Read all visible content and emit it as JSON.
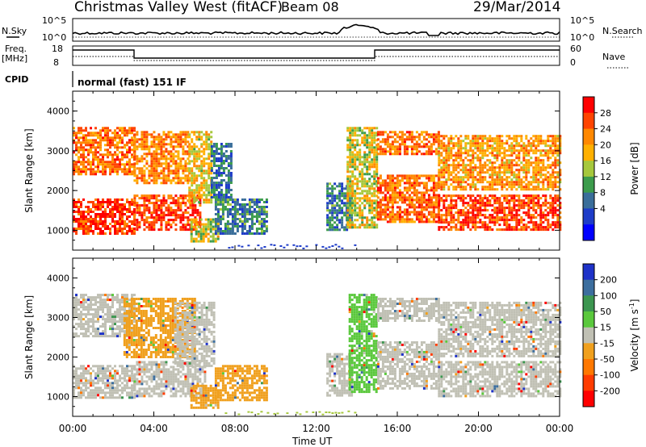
{
  "header": {
    "station": "Christmas Valley West (fitACF)",
    "beam": "Beam 08",
    "date": "29/Mar/2014"
  },
  "top_strip": {
    "nsky_label": "N.Sky",
    "nsky_ticks": [
      "10^5",
      "10^0"
    ],
    "nsearch_label": "N.Search",
    "nsearch_ticks": [
      "10^5",
      "10^0"
    ],
    "freq_label": "Freq.",
    "freq_unit": "[MHz]",
    "freq_ticks": [
      "18",
      "8"
    ],
    "nave_label": "Nave",
    "nave_ticks": [
      "60",
      "0"
    ],
    "cpid_label": "CPID",
    "cpid_value": "normal (fast) 151 IF"
  },
  "chart_data": [
    {
      "type": "heatmap",
      "name": "power",
      "ylabel": "Slant Range [km]",
      "ylim": [
        500,
        4500
      ],
      "yticks": [
        "1000",
        "2000",
        "3000",
        "4000"
      ],
      "xlim": [
        0,
        24
      ],
      "colorbar": {
        "label": "Power [dB]",
        "ticks": [
          "28",
          "24",
          "20",
          "16",
          "12",
          "8",
          "4"
        ],
        "colors": [
          "#ff0000",
          "#ff4400",
          "#ff8800",
          "#ffb000",
          "#a6c83c",
          "#3c9c4c",
          "#3a6e9a",
          "#1e3cc8",
          "#0000ff"
        ]
      },
      "regions": [
        {
          "t0": 0.0,
          "t1": 3.0,
          "r0": 900,
          "r1": 1800,
          "v": 0.92
        },
        {
          "t0": 0.0,
          "t1": 3.0,
          "r0": 2400,
          "r1": 3600,
          "v": 0.8
        },
        {
          "t0": 3.0,
          "t1": 6.3,
          "r0": 1000,
          "r1": 1900,
          "v": 0.88
        },
        {
          "t0": 3.0,
          "t1": 5.7,
          "r0": 2200,
          "r1": 3500,
          "v": 0.75
        },
        {
          "t0": 5.7,
          "t1": 6.8,
          "r0": 1700,
          "r1": 3500,
          "v": 0.6
        },
        {
          "t0": 5.8,
          "t1": 7.2,
          "r0": 700,
          "r1": 1300,
          "v": 0.55
        },
        {
          "t0": 7.0,
          "t1": 9.6,
          "r0": 900,
          "r1": 1800,
          "v": 0.3
        },
        {
          "t0": 6.8,
          "t1": 7.8,
          "r0": 1800,
          "r1": 3200,
          "v": 0.25
        },
        {
          "t0": 12.5,
          "t1": 13.8,
          "r0": 1000,
          "r1": 2200,
          "v": 0.28
        },
        {
          "t0": 13.5,
          "t1": 15.0,
          "r0": 1100,
          "r1": 3600,
          "v": 0.55
        },
        {
          "t0": 15.0,
          "t1": 18.0,
          "r0": 1200,
          "r1": 2400,
          "v": 0.82
        },
        {
          "t0": 15.0,
          "t1": 18.0,
          "r0": 2900,
          "r1": 3500,
          "v": 0.8
        },
        {
          "t0": 18.0,
          "t1": 24.0,
          "r0": 1000,
          "r1": 1900,
          "v": 0.9
        },
        {
          "t0": 18.0,
          "t1": 24.0,
          "r0": 2000,
          "r1": 3400,
          "v": 0.7
        }
      ]
    },
    {
      "type": "heatmap",
      "name": "velocity",
      "ylabel": "Slant Range [km]",
      "ylim": [
        500,
        4500
      ],
      "yticks": [
        "1000",
        "2000",
        "3000",
        "4000"
      ],
      "xlim": [
        0,
        24
      ],
      "xticks": [
        "00:00",
        "04:00",
        "08:00",
        "12:00",
        "16:00",
        "20:00",
        "00:00"
      ],
      "xlabel": "Time UT",
      "colorbar": {
        "label": "Velocity [m s",
        "label_sup": "-1",
        "label_end": "]",
        "ticks": [
          "200",
          "100",
          "50",
          "15",
          "-15",
          "-50",
          "-100",
          "-200"
        ],
        "colors": [
          "#1e32c8",
          "#3c6e9e",
          "#3c9650",
          "#5ac83c",
          "#c0c0b4",
          "#f0a01e",
          "#ff7800",
          "#ff3c00",
          "#ff0000"
        ]
      },
      "regions": [
        {
          "t0": 0.0,
          "t1": 3.0,
          "r0": 1000,
          "r1": 1800,
          "v": "gray"
        },
        {
          "t0": 0.0,
          "t1": 3.0,
          "r0": 2500,
          "r1": 3600,
          "v": "gray"
        },
        {
          "t0": 3.0,
          "t1": 6.5,
          "r0": 1000,
          "r1": 1900,
          "v": "gray"
        },
        {
          "t0": 2.5,
          "t1": 6.0,
          "r0": 2000,
          "r1": 3500,
          "v": "orange"
        },
        {
          "t0": 5.0,
          "t1": 7.0,
          "r0": 1800,
          "r1": 3400,
          "v": "gray"
        },
        {
          "t0": 5.8,
          "t1": 7.2,
          "r0": 700,
          "r1": 1300,
          "v": "orange"
        },
        {
          "t0": 7.0,
          "t1": 9.6,
          "r0": 900,
          "r1": 1800,
          "v": "orange"
        },
        {
          "t0": 12.5,
          "t1": 13.8,
          "r0": 1000,
          "r1": 2100,
          "v": "gray"
        },
        {
          "t0": 13.6,
          "t1": 15.0,
          "r0": 1100,
          "r1": 3600,
          "v": "green"
        },
        {
          "t0": 15.0,
          "t1": 18.0,
          "r0": 1200,
          "r1": 2400,
          "v": "gray"
        },
        {
          "t0": 15.0,
          "t1": 18.0,
          "r0": 2900,
          "r1": 3500,
          "v": "gray"
        },
        {
          "t0": 18.0,
          "t1": 24.0,
          "r0": 1000,
          "r1": 1900,
          "v": "gray"
        },
        {
          "t0": 18.0,
          "t1": 24.0,
          "r0": 2000,
          "r1": 3400,
          "v": "gray"
        }
      ]
    }
  ]
}
